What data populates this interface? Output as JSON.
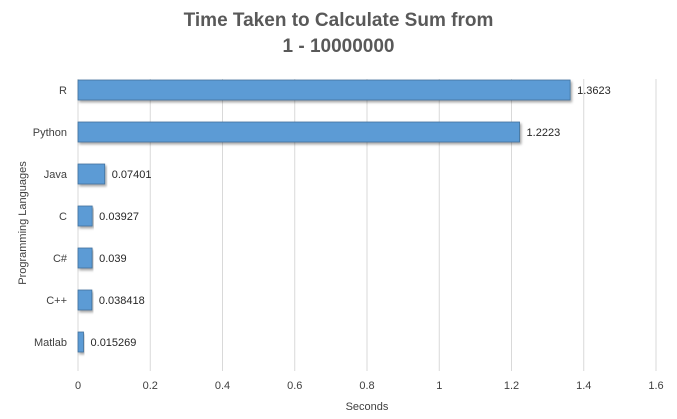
{
  "chart_data": {
    "type": "bar",
    "orientation": "horizontal",
    "title_lines": [
      "Time Taken to Calculate Sum from",
      "1 - 10000000"
    ],
    "xlabel": "Seconds",
    "ylabel": "Programming Languages",
    "categories": [
      "R",
      "Python",
      "Java",
      "C",
      "C#",
      "C++",
      "Matlab"
    ],
    "values": [
      1.3623,
      1.2223,
      0.07401,
      0.03927,
      0.039,
      0.038418,
      0.015269
    ],
    "data_labels": [
      "1.3623",
      "1.2223",
      "0.07401",
      "0.03927",
      "0.039",
      "0.038418",
      "0.015269"
    ],
    "xlim": [
      0,
      1.6
    ],
    "x_ticks": [
      0,
      0.2,
      0.4,
      0.6,
      0.8,
      1.0,
      1.2,
      1.4,
      1.6
    ],
    "x_tick_labels": [
      "0",
      "0.2",
      "0.4",
      "0.6",
      "0.8",
      "1",
      "1.2",
      "1.4",
      "1.6"
    ],
    "grid": "vertical",
    "legend": "none",
    "colors": {
      "bar_fill": "#5b9bd5",
      "bar_stroke": "#41719c",
      "grid": "#d9d9d9",
      "title": "#595959",
      "axis_text": "#404040"
    }
  }
}
